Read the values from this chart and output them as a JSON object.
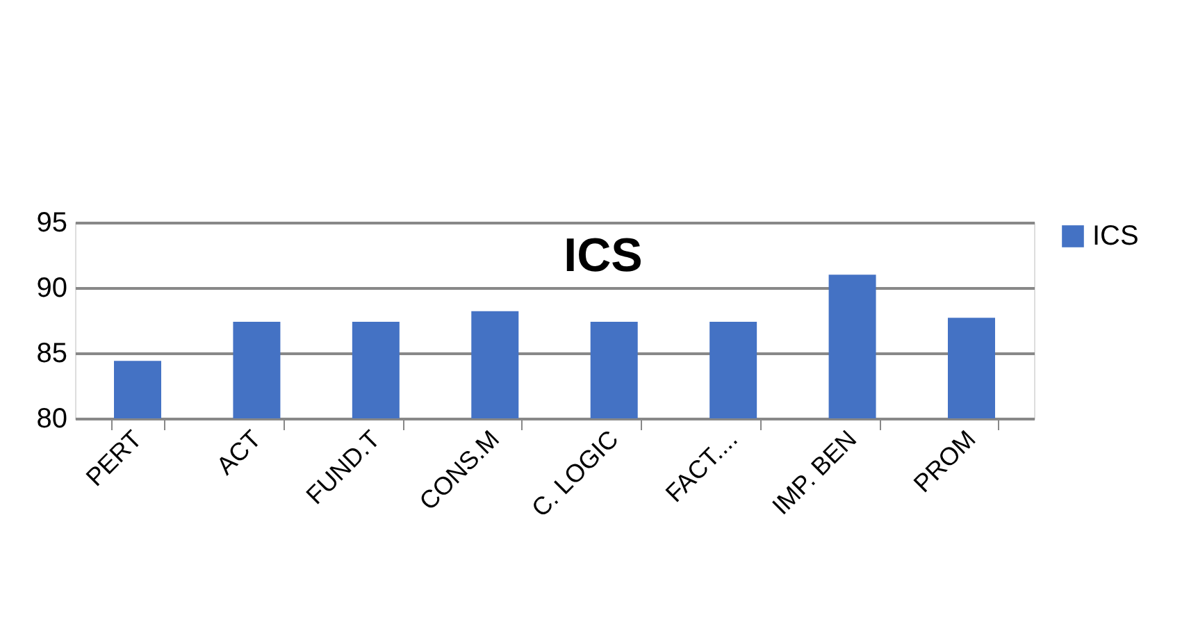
{
  "chart_data": {
    "type": "bar",
    "title": "ICS",
    "categories": [
      "PERT",
      "ACT",
      "FUND.T",
      "CONS.M",
      "C. LOGIC",
      "FACT....",
      "IMP. BEN",
      "PROM"
    ],
    "series": [
      {
        "name": "ICS",
        "color": "#4472c4",
        "values": [
          84.4,
          87.4,
          87.4,
          88.2,
          87.4,
          87.4,
          91.0,
          87.7
        ]
      }
    ],
    "ylim": [
      80,
      95
    ],
    "yticks": [
      80,
      85,
      90,
      95
    ],
    "grid": "y",
    "legend": "right"
  }
}
